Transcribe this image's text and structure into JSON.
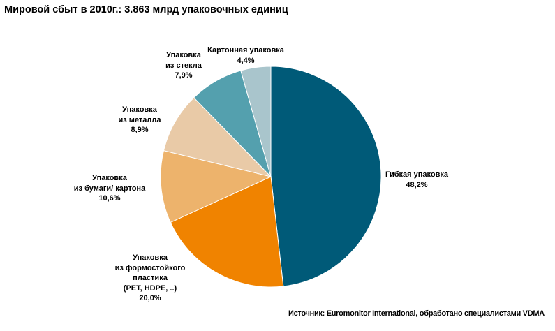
{
  "chart_data": {
    "type": "pie",
    "title": "Мировой сбыт в 2010г.: 3.863 млрд упаковочных  единиц",
    "source": "Источник: Euromonitor International, обработано специалистами VDMA",
    "slices": [
      {
        "name": "Гибкая упаковка",
        "label_lines": [
          "Гибкая упаковка"
        ],
        "value": 48.2,
        "value_label": "48,2%",
        "color": "#005a78"
      },
      {
        "name": "Упаковка из формостойкого пластика (PET, HDPE, ..)",
        "label_lines": [
          "Упаковка",
          "из  формостойкого",
          "пластика",
          "(PET, HDPE, ..)"
        ],
        "value": 20.0,
        "value_label": "20,0%",
        "color": "#f08300"
      },
      {
        "name": "Упаковка из бумаги/ картона",
        "label_lines": [
          "Упаковка",
          "из бумаги/ картона"
        ],
        "value": 10.6,
        "value_label": "10,6%",
        "color": "#edb36c"
      },
      {
        "name": "Упаковка из металла",
        "label_lines": [
          "Упаковка",
          "из металла"
        ],
        "value": 8.9,
        "value_label": "8,9%",
        "color": "#e9caa7"
      },
      {
        "name": "Упаковка из стекла",
        "label_lines": [
          "Упаковка",
          "из стекла"
        ],
        "value": 7.9,
        "value_label": "7,9%",
        "color": "#54a0ae"
      },
      {
        "name": "Картонная упаковка",
        "label_lines": [
          "Картонная упаковка"
        ],
        "value": 4.4,
        "value_label": "4,4%",
        "color": "#a9c5cc"
      }
    ]
  }
}
